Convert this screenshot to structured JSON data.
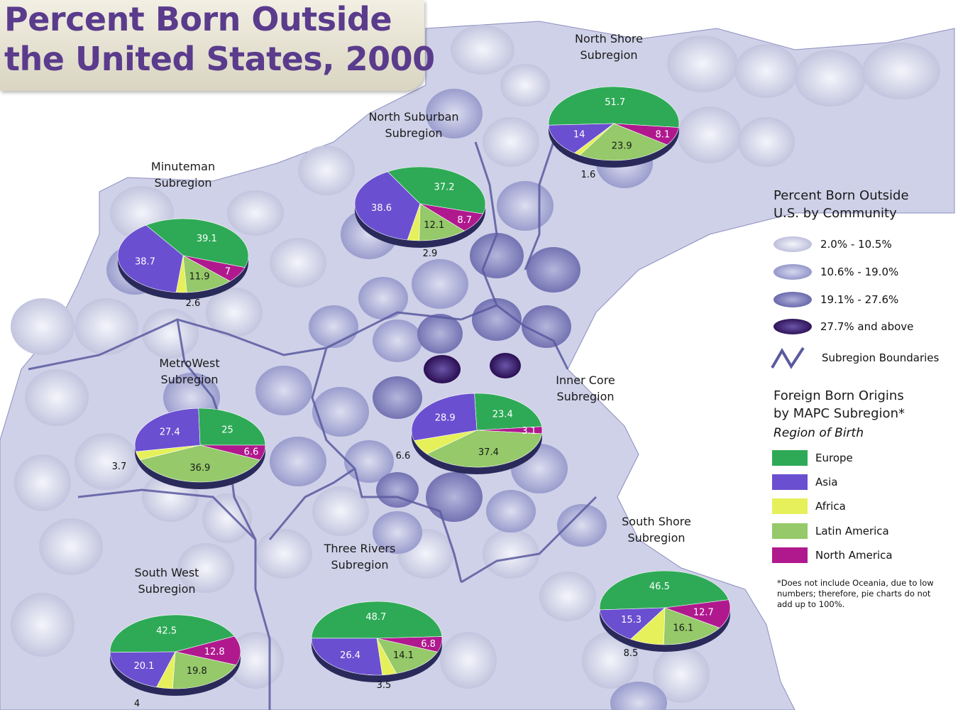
{
  "title": {
    "line1": "Percent Born Outside",
    "line2": "the United States, 2000"
  },
  "legend": {
    "community_heading_1": "Percent Born Outside",
    "community_heading_2": "U.S. by Community",
    "community_classes": [
      {
        "label": "2.0% - 10.5%",
        "color": "#d9dbec"
      },
      {
        "label": "10.6% - 19.0%",
        "color": "#b3b6da"
      },
      {
        "label": "19.1% - 27.6%",
        "color": "#8f8ec5"
      },
      {
        "label": "27.7% and above",
        "color": "#4a2474"
      }
    ],
    "boundary_label": "Subregion Boundaries",
    "origins_heading_1": "Foreign Born Origins",
    "origins_heading_2": "by MAPC Subregion*",
    "origins_subheading": "Region of Birth",
    "origins": [
      {
        "label": "Europe",
        "color": "#2eaa56"
      },
      {
        "label": "Asia",
        "color": "#6a4fd0"
      },
      {
        "label": "Africa",
        "color": "#e6f05a"
      },
      {
        "label": "Latin America",
        "color": "#95c96a"
      },
      {
        "label": "North America",
        "color": "#b0198e"
      }
    ],
    "footnote": "*Does not include Oceania, due to low numbers; therefore, pie charts do not add up to 100%."
  },
  "chart_data": [
    {
      "type": "pie",
      "title": "Minuteman Subregion",
      "categories": [
        "Europe",
        "Asia",
        "Africa",
        "Latin America",
        "North America"
      ],
      "values": [
        39.1,
        38.7,
        2.6,
        11.9,
        7
      ]
    },
    {
      "type": "pie",
      "title": "North Suburban Subregion",
      "categories": [
        "Europe",
        "Asia",
        "Africa",
        "Latin America",
        "North America"
      ],
      "values": [
        37.2,
        38.6,
        2.9,
        12.1,
        8.7
      ]
    },
    {
      "type": "pie",
      "title": "North Shore Subregion",
      "categories": [
        "Europe",
        "Asia",
        "Africa",
        "Latin America",
        "North America"
      ],
      "values": [
        51.7,
        14,
        1.6,
        23.9,
        8.1
      ]
    },
    {
      "type": "pie",
      "title": "MetroWest Subregion",
      "categories": [
        "Europe",
        "Asia",
        "Africa",
        "Latin America",
        "North America"
      ],
      "values": [
        25,
        27.4,
        3.7,
        36.9,
        6.6
      ]
    },
    {
      "type": "pie",
      "title": "Inner Core Subregion",
      "categories": [
        "Europe",
        "Asia",
        "Africa",
        "Latin America",
        "North America"
      ],
      "values": [
        23.4,
        28.9,
        6.6,
        37.4,
        3.1
      ]
    },
    {
      "type": "pie",
      "title": "South West Subregion",
      "categories": [
        "Europe",
        "Asia",
        "Africa",
        "Latin America",
        "North America"
      ],
      "values": [
        42.5,
        20.1,
        4,
        19.8,
        12.8
      ]
    },
    {
      "type": "pie",
      "title": "Three Rivers Subregion",
      "categories": [
        "Europe",
        "Asia",
        "Africa",
        "Latin America",
        "North America"
      ],
      "values": [
        48.7,
        26.4,
        3.5,
        14.1,
        6.8
      ]
    },
    {
      "type": "pie",
      "title": "South Shore Subregion",
      "categories": [
        "Europe",
        "Asia",
        "Africa",
        "Latin America",
        "North America"
      ],
      "values": [
        46.5,
        15.3,
        8.5,
        16.1,
        12.7
      ]
    }
  ]
}
